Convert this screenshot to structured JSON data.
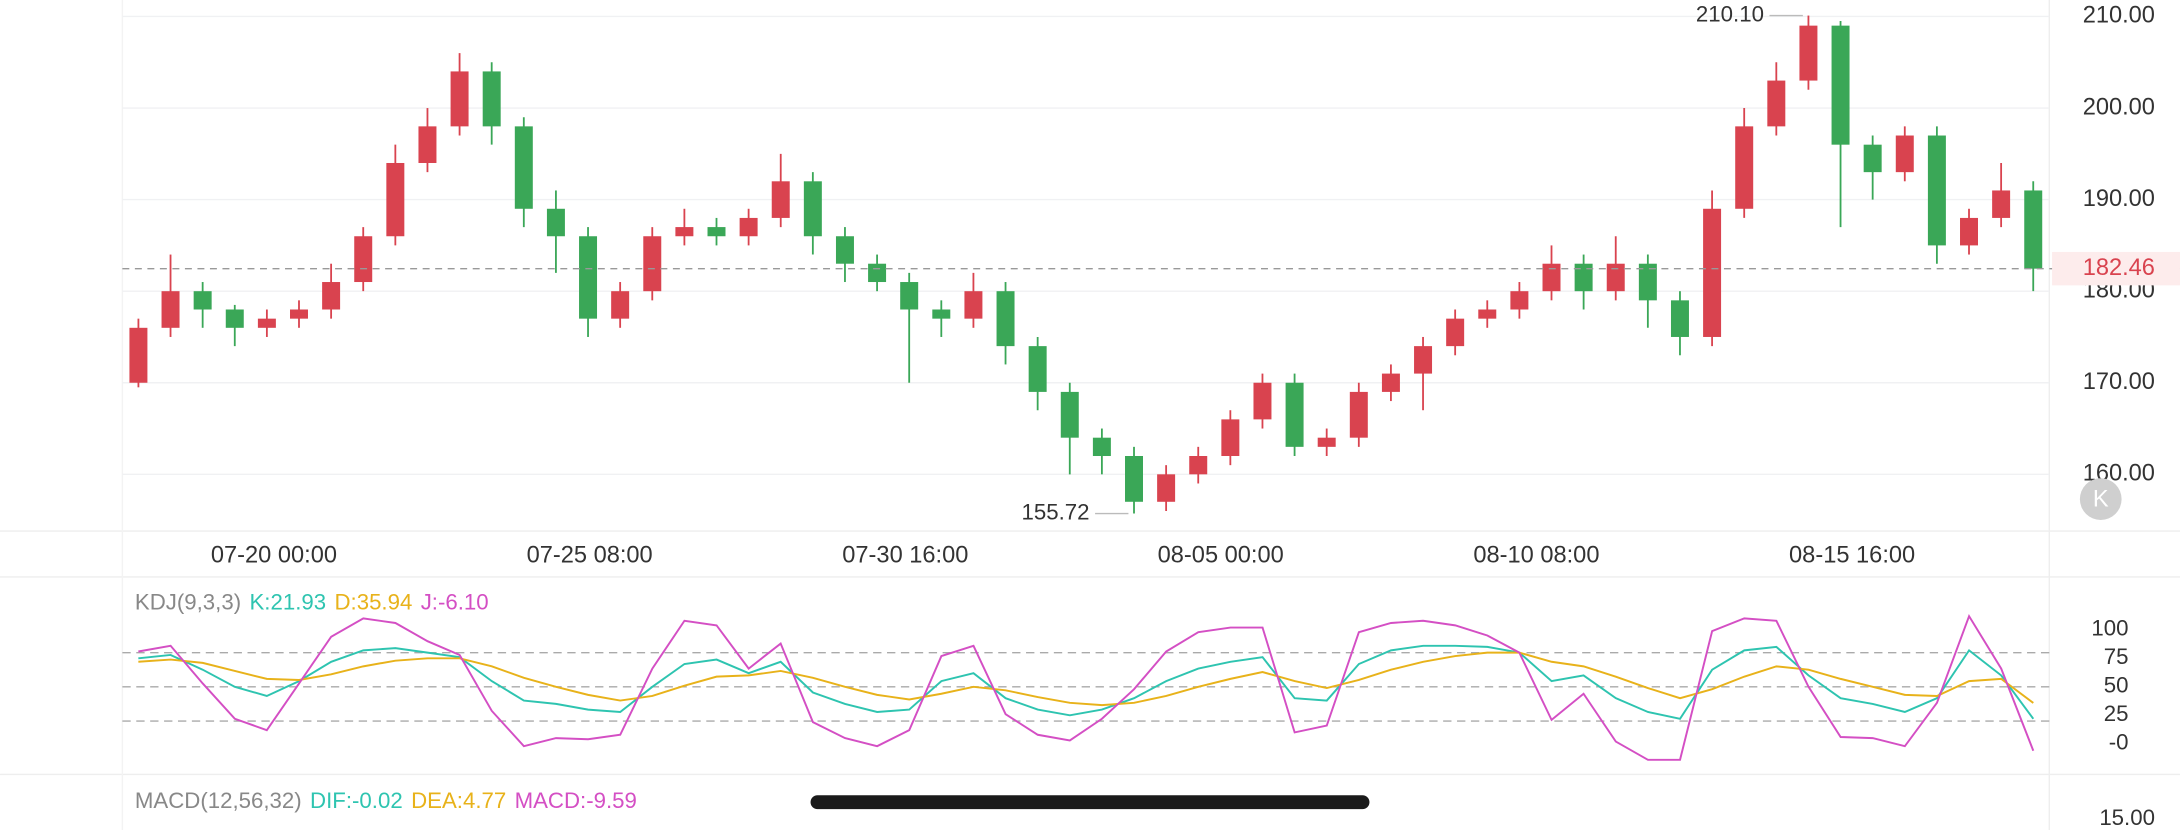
{
  "chart_data": [
    {
      "type": "candlestick",
      "open": [
        170,
        176,
        180,
        178,
        176,
        177,
        178,
        181,
        186,
        194,
        198,
        204,
        198,
        189,
        186,
        177,
        180,
        186,
        187,
        186,
        188,
        192,
        186,
        183,
        181,
        178,
        177,
        180,
        174,
        169,
        164,
        162,
        157,
        160,
        162,
        166,
        170,
        163,
        164,
        169,
        171,
        174,
        177,
        178,
        180,
        183,
        180,
        183,
        179,
        175,
        189,
        198,
        203,
        209,
        196,
        193,
        197,
        185,
        188,
        191
      ],
      "high": [
        177,
        184,
        181,
        178.5,
        178,
        179,
        183,
        187,
        196,
        200,
        206,
        205,
        199,
        191,
        187,
        181,
        187,
        189,
        188,
        189,
        195,
        193,
        187,
        184,
        182,
        179,
        182,
        181,
        175,
        170,
        165,
        163,
        161,
        163,
        167,
        171,
        171,
        165,
        170,
        172,
        175,
        178,
        179,
        181,
        185,
        184,
        186,
        184,
        180,
        191,
        200,
        205,
        210.1,
        209.5,
        197,
        198,
        198,
        189,
        194,
        192
      ],
      "low": [
        169.5,
        175,
        176,
        174,
        175,
        176,
        177,
        180,
        185,
        193,
        197,
        196,
        187,
        182,
        175,
        176,
        179,
        185,
        185,
        185,
        187,
        184,
        181,
        180,
        170,
        175,
        176,
        172,
        167,
        160,
        160,
        155.72,
        156,
        159,
        161,
        165,
        162,
        162,
        163,
        168,
        167,
        173,
        176,
        177,
        179,
        178,
        179,
        176,
        173,
        174,
        188,
        197,
        202,
        187,
        190,
        192,
        183,
        184,
        187,
        180
      ],
      "close": [
        176,
        180,
        178,
        176,
        177,
        178,
        181,
        186,
        194,
        198,
        204,
        198,
        189,
        186,
        177,
        180,
        186,
        187,
        186,
        188,
        192,
        186,
        183,
        181,
        178,
        177,
        180,
        174,
        169,
        164,
        162,
        157,
        160,
        162,
        166,
        170,
        163,
        164,
        169,
        171,
        174,
        177,
        178,
        180,
        183,
        180,
        183,
        179,
        175,
        189,
        198,
        203,
        209,
        196,
        193,
        197,
        185,
        188,
        191,
        182.46
      ],
      "up_color": "#d9434f",
      "down_color": "#3aa757",
      "ylim": [
        153.8,
        211.8
      ],
      "yticks": [
        {
          "value": 160,
          "label": "160.00"
        },
        {
          "value": 170,
          "label": "170.00"
        },
        {
          "value": 180,
          "label": "180.00"
        },
        {
          "value": 190,
          "label": "190.00"
        },
        {
          "value": 200,
          "label": "200.00"
        },
        {
          "value": 210,
          "label": "210.00"
        }
      ],
      "xticks": [
        {
          "value": 4.22,
          "label": "07-20 00:00"
        },
        {
          "value": 14.05,
          "label": "07-25 08:00"
        },
        {
          "value": 23.88,
          "label": "07-30 16:00"
        },
        {
          "value": 33.7,
          "label": "08-05 00:00"
        },
        {
          "value": 43.53,
          "label": "08-10 08:00"
        },
        {
          "value": 53.36,
          "label": "08-15 16:00"
        }
      ],
      "annotations": [
        {
          "x": 52,
          "value": 210.1,
          "label": "210.10"
        },
        {
          "x": 31,
          "value": 155.72,
          "label": "155.72"
        }
      ],
      "last_price": {
        "value": 182.46,
        "label": "182.46"
      },
      "grid": true
    },
    {
      "type": "line",
      "title": "KDJ(9,3,3)",
      "series": [
        {
          "name": "K:21.93",
          "color": "#2ec4b0",
          "values": [
            75,
            78,
            65,
            50,
            42,
            55,
            72,
            82,
            84,
            80,
            76,
            55,
            38,
            35,
            30,
            28,
            50,
            70,
            74,
            62,
            72,
            45,
            35,
            28,
            30,
            55,
            62,
            40,
            30,
            25,
            30,
            40,
            55,
            66,
            72,
            76,
            40,
            38,
            70,
            82,
            86,
            86,
            85,
            80,
            55,
            60,
            40,
            28,
            22,
            65,
            82,
            85,
            60,
            40,
            35,
            28,
            40,
            82,
            60,
            21.93
          ]
        },
        {
          "name": "D:35.94",
          "color": "#e8b21a",
          "values": [
            72,
            74,
            71,
            64,
            57,
            56,
            61,
            68,
            73,
            75,
            75,
            68,
            58,
            50,
            43,
            38,
            42,
            51,
            59,
            60,
            64,
            58,
            50,
            43,
            39,
            44,
            50,
            47,
            41,
            36,
            34,
            36,
            42,
            50,
            57,
            63,
            55,
            49,
            56,
            65,
            72,
            77,
            80,
            80,
            72,
            68,
            59,
            49,
            40,
            48,
            59,
            68,
            65,
            57,
            50,
            43,
            42,
            55,
            57,
            35.94
          ]
        },
        {
          "name": "J:-6.10",
          "color": "#d44fc4",
          "values": [
            81,
            86,
            53,
            22,
            12,
            53,
            94,
            110,
            106,
            90,
            78,
            29,
            -2,
            5,
            4,
            8,
            66,
            108,
            104,
            66,
            88,
            19,
            5,
            -2,
            12,
            77,
            86,
            26,
            8,
            3,
            22,
            48,
            81,
            98,
            102,
            102,
            10,
            16,
            98,
            106,
            108,
            104,
            95,
            80,
            21,
            44,
            2,
            -14,
            -14,
            99,
            110,
            108,
            50,
            6,
            5,
            -2,
            36,
            112,
            66,
            -6.1
          ]
        }
      ],
      "ylim": [
        -20.7,
        115.9
      ],
      "yticks": [
        100,
        75,
        50,
        25,
        {
          "value": 0,
          "label": "-0"
        }
      ],
      "levels": [
        80,
        50,
        20
      ]
    },
    {
      "type": "line",
      "title": "MACD(12,56,32)",
      "series": [
        {
          "name": "DIF:-0.02",
          "color": "#2ec4b0",
          "values": []
        },
        {
          "name": "DEA:4.77",
          "color": "#e8b21a",
          "values": []
        },
        {
          "name": "MACD:-9.59",
          "color": "#d44fc4",
          "values": []
        }
      ],
      "ylim": [
        -20,
        17
      ],
      "yticks": [
        {
          "value": 15,
          "label": "15.00"
        }
      ]
    }
  ],
  "ui": {
    "k_button": "K"
  }
}
